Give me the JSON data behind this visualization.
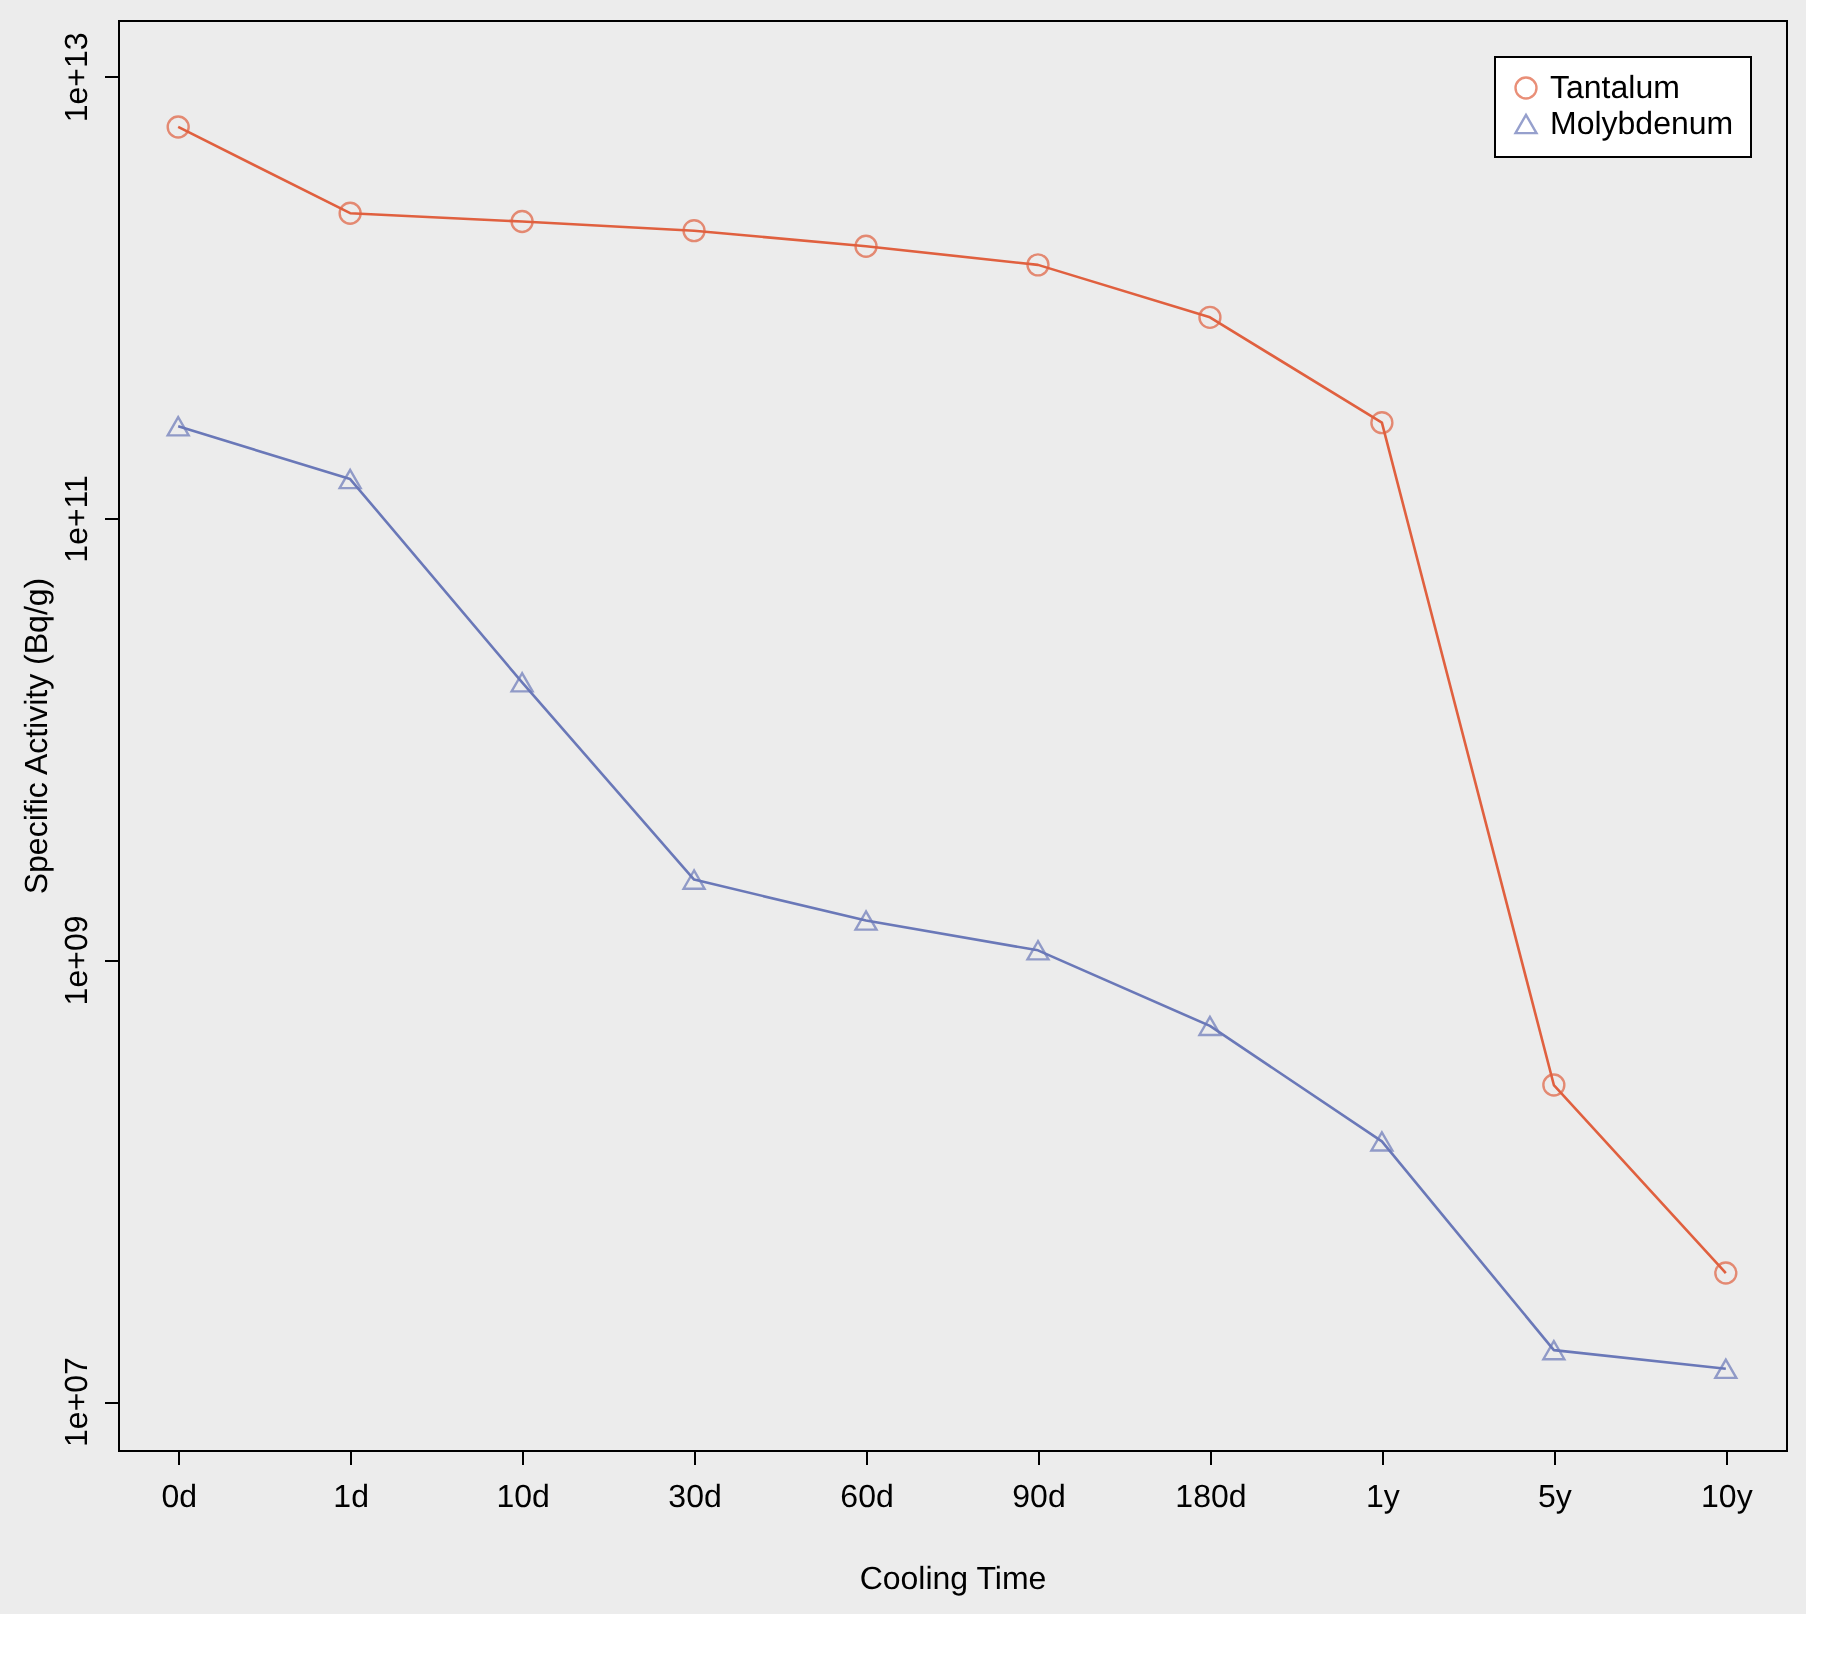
{
  "chart_data": {
    "type": "line",
    "xlabel": "Cooling Time",
    "ylabel": "Specific Activity (Bq/g)",
    "categories": [
      "0d",
      "1d",
      "10d",
      "30d",
      "60d",
      "90d",
      "180d",
      "1y",
      "5y",
      "10y"
    ],
    "series": [
      {
        "name": "Tantalum",
        "color": "#e0603f",
        "marker": "circle",
        "values": [
          5900000000000.0,
          2400000000000.0,
          2200000000000.0,
          2000000000000.0,
          1700000000000.0,
          1400000000000.0,
          810000000000.0,
          270000000000.0,
          270000000.0,
          38000000.0
        ]
      },
      {
        "name": "Molybdenum",
        "color": "#6a78b8",
        "marker": "triangle",
        "values": [
          260000000000.0,
          150000000000.0,
          18000000000.0,
          2300000000.0,
          1500000000.0,
          1100000000.0,
          500000000.0,
          150000000.0,
          17000000.0,
          14000000.0
        ]
      }
    ],
    "log": true,
    "ylim": [
      6000000.0,
      18000000000000.0
    ],
    "yticks": [
      {
        "value": 10000000.0,
        "label": "1e+07"
      },
      {
        "value": 1000000000.0,
        "label": "1e+09"
      },
      {
        "value": 100000000000.0,
        "label": "1e+11"
      },
      {
        "value": 10000000000000.0,
        "label": "1e+13"
      }
    ],
    "grid": false,
    "legend": "top right",
    "line_style": "solid"
  }
}
